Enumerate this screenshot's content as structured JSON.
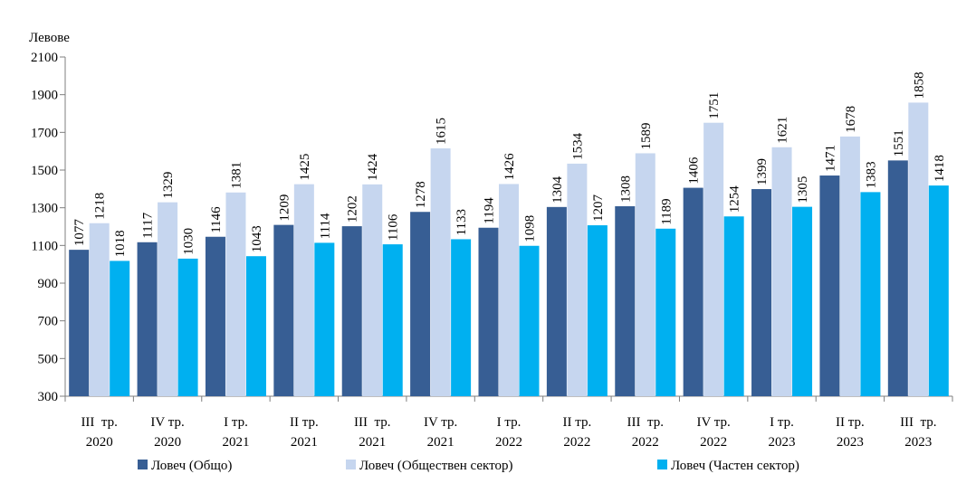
{
  "chart_data": {
    "type": "bar",
    "ylabel": "Левове",
    "ylim": [
      300,
      2100
    ],
    "yticks": [
      300,
      500,
      700,
      900,
      1100,
      1300,
      1500,
      1700,
      1900,
      2100
    ],
    "grid": false,
    "legend_position": "bottom",
    "categories": [
      [
        "III  тр.",
        "2020"
      ],
      [
        "IV тр.",
        "2020"
      ],
      [
        "I тр.",
        "2021"
      ],
      [
        "II тр.",
        "2021"
      ],
      [
        "III  тр.",
        "2021"
      ],
      [
        "IV тр.",
        "2021"
      ],
      [
        "I тр.",
        "2022"
      ],
      [
        "II тр.",
        "2022"
      ],
      [
        "III  тр.",
        "2022"
      ],
      [
        "IV тр.",
        "2022"
      ],
      [
        "I тр.",
        "2023"
      ],
      [
        "II тр.",
        "2023"
      ],
      [
        "III  тр.",
        "2023"
      ]
    ],
    "series": [
      {
        "name": "Ловеч (Общо)",
        "color": "#375E94",
        "values": [
          1077,
          1117,
          1146,
          1209,
          1202,
          1278,
          1194,
          1304,
          1308,
          1406,
          1399,
          1471,
          1551
        ]
      },
      {
        "name": "Ловеч (Обществен сектор)",
        "color": "#C6D6EF",
        "values": [
          1218,
          1329,
          1381,
          1425,
          1424,
          1615,
          1426,
          1534,
          1589,
          1751,
          1621,
          1678,
          1858
        ]
      },
      {
        "name": "Ловеч (Частен сектор)",
        "color": "#00B0F0",
        "values": [
          1018,
          1030,
          1043,
          1114,
          1106,
          1133,
          1098,
          1207,
          1189,
          1254,
          1305,
          1383,
          1418
        ]
      }
    ]
  }
}
